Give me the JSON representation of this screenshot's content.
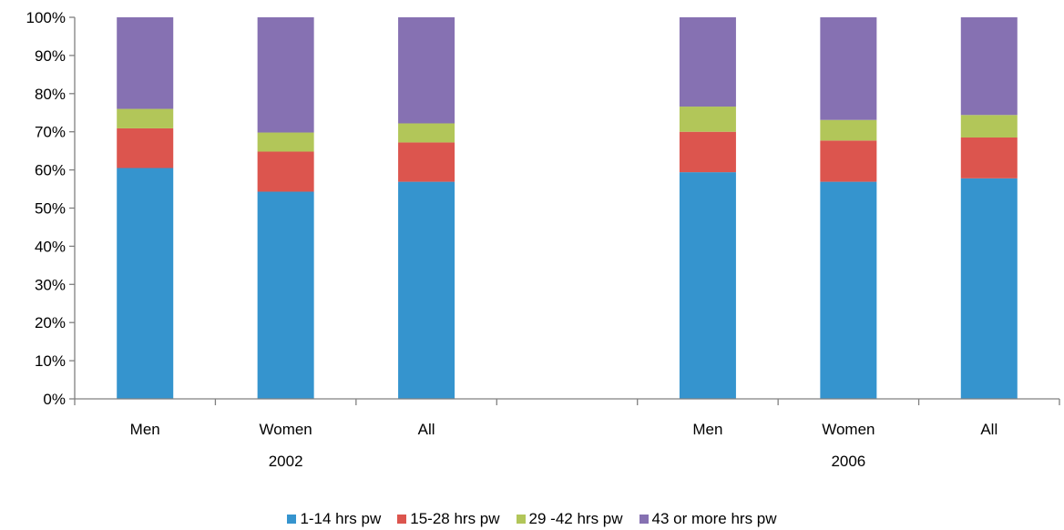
{
  "chart_data": {
    "type": "bar",
    "stacked": true,
    "percent_stacked": true,
    "categories": [
      "Men",
      "Women",
      "All",
      "",
      "Men",
      "Women",
      "All"
    ],
    "group_labels": [
      {
        "label": "2002",
        "categories": [
          "Men",
          "Women",
          "All"
        ]
      },
      {
        "label": "2006",
        "categories": [
          "Men",
          "Women",
          "All"
        ]
      }
    ],
    "series": [
      {
        "name": "1-14 hrs pw",
        "color": "#3594ce",
        "values": [
          60.5,
          54.3,
          56.9,
          null,
          59.4,
          56.9,
          57.8
        ]
      },
      {
        "name": "15-28 hrs pw",
        "color": "#dc554e",
        "values": [
          10.4,
          10.5,
          10.3,
          null,
          10.6,
          10.8,
          10.7
        ]
      },
      {
        "name": "29 -42 hrs pw",
        "color": "#b2c659",
        "values": [
          5.1,
          5.0,
          5.0,
          null,
          6.6,
          5.4,
          5.9
        ]
      },
      {
        "name": "43 or more hrs pw",
        "color": "#8671b2",
        "values": [
          24.0,
          30.2,
          27.8,
          null,
          23.4,
          26.9,
          25.6
        ]
      }
    ],
    "ylim": [
      0,
      100
    ],
    "yticks": [
      "0%",
      "10%",
      "20%",
      "30%",
      "40%",
      "50%",
      "60%",
      "70%",
      "80%",
      "90%",
      "100%"
    ],
    "grid": false,
    "legend_position": "bottom"
  },
  "colors": {
    "axis": "#808080"
  }
}
